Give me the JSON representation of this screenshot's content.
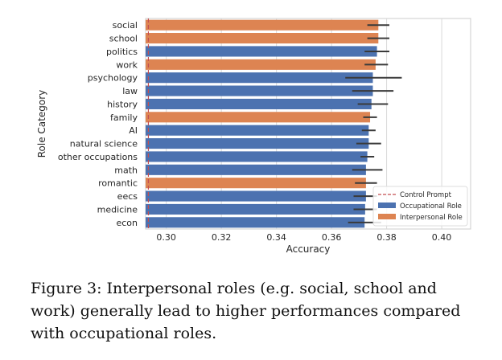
{
  "chart_data": {
    "type": "bar",
    "orientation": "horizontal",
    "ylabel": "Role Category",
    "xlabel": "Accuracy",
    "xlim": [
      0.2925,
      0.4105
    ],
    "xticks": [
      0.3,
      0.32,
      0.34,
      0.36,
      0.38,
      0.4
    ],
    "xtick_labels": [
      "0.30",
      "0.32",
      "0.34",
      "0.36",
      "0.38",
      "0.40"
    ],
    "control_prompt": 0.2935,
    "colors": {
      "occupational": "#4c72b0",
      "interpersonal": "#dd8452",
      "control": "#c44e52",
      "errorbar": "#3a3a3a"
    },
    "legend": {
      "position": "lower-right",
      "entries": [
        {
          "label": "Control Prompt",
          "kind": "control"
        },
        {
          "label": "Occupational Role",
          "kind": "occupational"
        },
        {
          "label": "Interpersonal Role",
          "kind": "interpersonal"
        }
      ]
    },
    "categories": [
      {
        "name": "social",
        "type": "interpersonal",
        "value": 0.377,
        "err": [
          0.373,
          0.381
        ]
      },
      {
        "name": "school",
        "type": "interpersonal",
        "value": 0.377,
        "err": [
          0.373,
          0.381
        ]
      },
      {
        "name": "politics",
        "type": "occupational",
        "value": 0.3765,
        "err": [
          0.372,
          0.381
        ]
      },
      {
        "name": "work",
        "type": "interpersonal",
        "value": 0.376,
        "err": [
          0.372,
          0.3805
        ]
      },
      {
        "name": "psychology",
        "type": "occupational",
        "value": 0.375,
        "err": [
          0.365,
          0.3855
        ]
      },
      {
        "name": "law",
        "type": "occupational",
        "value": 0.375,
        "err": [
          0.3675,
          0.3825
        ]
      },
      {
        "name": "history",
        "type": "occupational",
        "value": 0.3745,
        "err": [
          0.3695,
          0.3805
        ]
      },
      {
        "name": "family",
        "type": "interpersonal",
        "value": 0.374,
        "err": [
          0.3715,
          0.3765
        ]
      },
      {
        "name": "AI",
        "type": "occupational",
        "value": 0.3735,
        "err": [
          0.371,
          0.376
        ]
      },
      {
        "name": "natural science",
        "type": "occupational",
        "value": 0.3735,
        "err": [
          0.369,
          0.378
        ]
      },
      {
        "name": "other occupations",
        "type": "occupational",
        "value": 0.373,
        "err": [
          0.3705,
          0.3755
        ]
      },
      {
        "name": "math",
        "type": "occupational",
        "value": 0.3725,
        "err": [
          0.3675,
          0.3785
        ]
      },
      {
        "name": "romantic",
        "type": "interpersonal",
        "value": 0.3725,
        "err": [
          0.3685,
          0.3765
        ]
      },
      {
        "name": "eecs",
        "type": "occupational",
        "value": 0.3725,
        "err": [
          0.368,
          0.3765
        ]
      },
      {
        "name": "medicine",
        "type": "occupational",
        "value": 0.3722,
        "err": [
          0.368,
          0.3765
        ]
      },
      {
        "name": "econ",
        "type": "occupational",
        "value": 0.372,
        "err": [
          0.366,
          0.378
        ]
      }
    ]
  },
  "caption": "Figure 3: Interpersonal roles (e.g. social, school and work) generally lead to higher performances compared with occupational roles."
}
